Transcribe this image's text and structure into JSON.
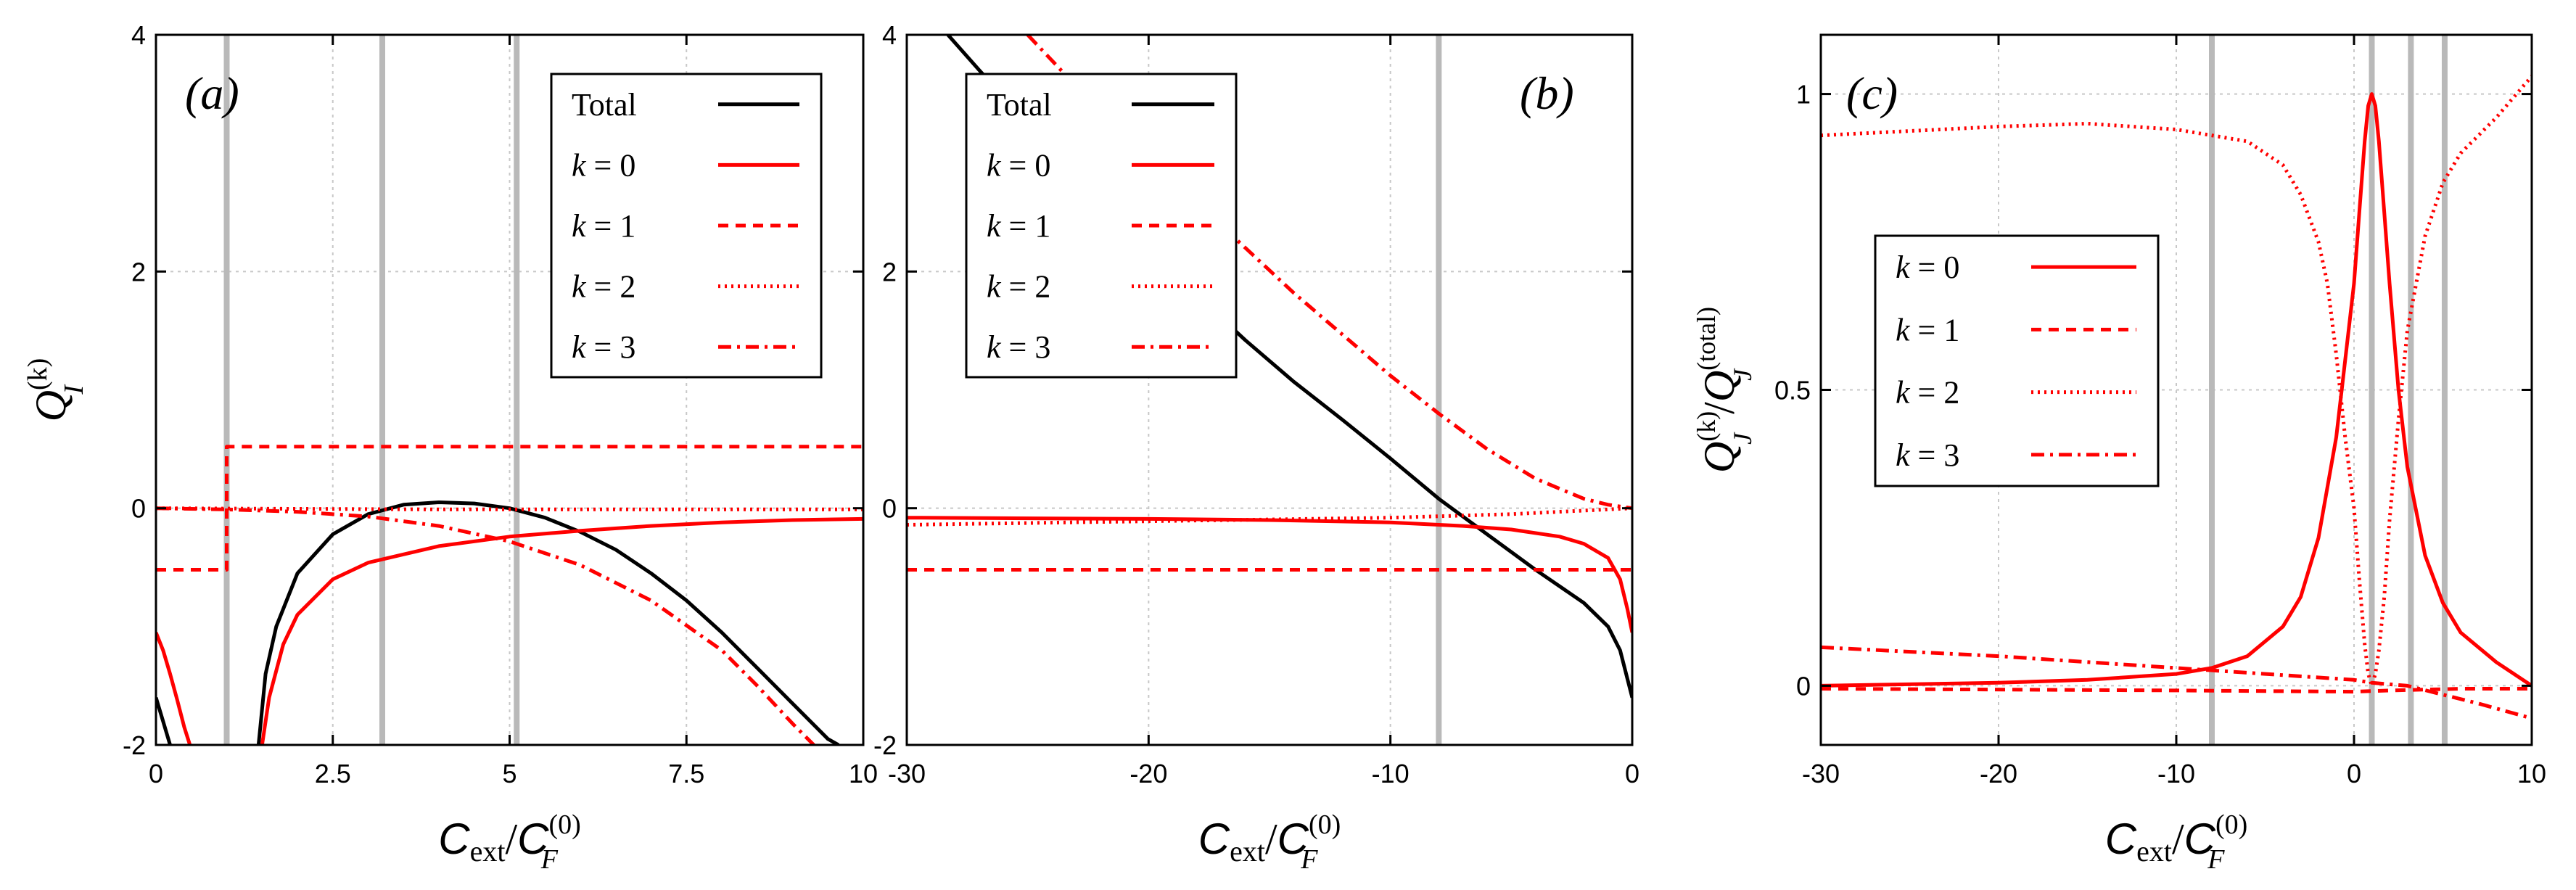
{
  "chart_data": [
    {
      "panel": "(a)",
      "type": "line",
      "xlabel": "C_ext / C_F^(0)",
      "ylabel": "Q_I^(k)",
      "xlim": [
        0,
        10
      ],
      "ylim": [
        -2,
        4
      ],
      "x_ticks": [
        "0",
        "2.5",
        "5",
        "7.5",
        "10"
      ],
      "x_tick_values": [
        0,
        2.5,
        5,
        7.5,
        10
      ],
      "y_ticks": [
        "-2",
        "0",
        "2",
        "4"
      ],
      "y_tick_values": [
        -2,
        0,
        2,
        4
      ],
      "vlines": [
        1.0,
        3.2,
        5.1
      ],
      "legend": [
        "Total",
        "k = 0",
        "k = 1",
        "k = 2",
        "k = 3"
      ],
      "series": [
        {
          "name": "Total",
          "color": "#000000",
          "dash": "",
          "x": [
            0,
            0.1,
            0.2
          ],
          "y": [
            -1.6,
            -1.8,
            -2.0
          ]
        },
        {
          "name": "Total",
          "color": "#000000",
          "dash": "",
          "x": [
            1.45,
            1.55,
            1.7,
            2.0,
            2.5,
            3.0,
            3.5,
            4.0,
            4.5,
            5.0,
            5.5,
            6.0,
            6.5,
            7.0,
            7.5,
            8.0,
            8.5,
            9.0,
            9.5,
            9.65
          ],
          "y": [
            -2.0,
            -1.4,
            -1.0,
            -0.55,
            -0.22,
            -0.05,
            0.03,
            0.05,
            0.04,
            0.0,
            -0.08,
            -0.2,
            -0.35,
            -0.55,
            -0.78,
            -1.05,
            -1.35,
            -1.65,
            -1.95,
            -2.0
          ]
        },
        {
          "name": "k = 0",
          "color": "#ff0000",
          "dash": "",
          "x": [
            0,
            0.1,
            0.2,
            0.3,
            0.4,
            0.48
          ],
          "y": [
            -1.05,
            -1.2,
            -1.4,
            -1.62,
            -1.85,
            -2.0
          ]
        },
        {
          "name": "k = 0",
          "color": "#ff0000",
          "dash": "",
          "x": [
            1.5,
            1.6,
            1.8,
            2.0,
            2.5,
            3.0,
            4.0,
            5.0,
            6.0,
            7.0,
            8.0,
            9.0,
            10.0
          ],
          "y": [
            -2.0,
            -1.6,
            -1.15,
            -0.9,
            -0.6,
            -0.46,
            -0.32,
            -0.24,
            -0.19,
            -0.15,
            -0.12,
            -0.1,
            -0.09
          ]
        },
        {
          "name": "k = 1",
          "color": "#ff0000",
          "dash": "14,10",
          "x": [
            0,
            1,
            1,
            10
          ],
          "y": [
            -0.52,
            -0.52,
            0.52,
            0.52
          ]
        },
        {
          "name": "k = 2",
          "color": "#ff0000",
          "dash": "3,6",
          "x": [
            0,
            2,
            4,
            6,
            8,
            10
          ],
          "y": [
            0.0,
            -0.005,
            -0.01,
            -0.01,
            -0.01,
            -0.01
          ]
        },
        {
          "name": "k = 3",
          "color": "#ff0000",
          "dash": "18,8,4,8",
          "x": [
            0,
            1,
            2,
            3,
            4,
            5,
            6,
            7,
            8,
            8.5,
            9,
            9.3
          ],
          "y": [
            0.0,
            -0.01,
            -0.03,
            -0.07,
            -0.15,
            -0.28,
            -0.48,
            -0.78,
            -1.2,
            -1.5,
            -1.82,
            -2.0
          ]
        }
      ]
    },
    {
      "panel": "(b)",
      "type": "line",
      "xlabel": "C_ext / C_F^(0)",
      "ylabel": "",
      "xlim": [
        -30,
        0
      ],
      "ylim": [
        -2,
        4
      ],
      "x_ticks": [
        "-30",
        "-20",
        "-10",
        "0"
      ],
      "x_tick_values": [
        -30,
        -20,
        -10,
        0
      ],
      "y_ticks": [
        "-2",
        "0",
        "2",
        "4"
      ],
      "y_tick_values": [
        -2,
        0,
        2,
        4
      ],
      "vlines": [
        -8.0
      ],
      "legend": [
        "Total",
        "k = 0",
        "k = 1",
        "k = 2",
        "k = 3"
      ],
      "series": [
        {
          "name": "Total",
          "color": "#000000",
          "dash": "",
          "x": [
            -28.3,
            -27,
            -25,
            -22,
            -20,
            -18,
            -16,
            -14,
            -12,
            -10,
            -8,
            -6,
            -4,
            -2,
            -1,
            -0.5,
            0
          ],
          "y": [
            4.0,
            3.7,
            3.25,
            2.6,
            2.2,
            1.8,
            1.42,
            1.07,
            0.75,
            0.42,
            0.08,
            -0.22,
            -0.52,
            -0.8,
            -1.0,
            -1.2,
            -1.6
          ]
        },
        {
          "name": "k = 0",
          "color": "#ff0000",
          "dash": "",
          "x": [
            -30,
            -20,
            -15,
            -10,
            -7,
            -5,
            -3,
            -2,
            -1,
            -0.5,
            -0.2,
            0
          ],
          "y": [
            -0.08,
            -0.09,
            -0.1,
            -0.12,
            -0.15,
            -0.18,
            -0.24,
            -0.3,
            -0.42,
            -0.6,
            -0.85,
            -1.05
          ]
        },
        {
          "name": "k = 1",
          "color": "#ff0000",
          "dash": "14,10",
          "x": [
            -30,
            0
          ],
          "y": [
            -0.52,
            -0.52
          ]
        },
        {
          "name": "k = 2",
          "color": "#ff0000",
          "dash": "3,6",
          "x": [
            -30,
            -20,
            -10,
            -5,
            -2,
            0
          ],
          "y": [
            -0.14,
            -0.11,
            -0.08,
            -0.05,
            -0.02,
            0.0
          ]
        },
        {
          "name": "k = 3",
          "color": "#ff0000",
          "dash": "18,8,4,8",
          "x": [
            -25,
            -22,
            -20,
            -18,
            -16,
            -14,
            -12,
            -10,
            -8,
            -6,
            -4,
            -2,
            -1,
            0
          ],
          "y": [
            4.0,
            3.35,
            2.95,
            2.58,
            2.2,
            1.82,
            1.47,
            1.12,
            0.8,
            0.5,
            0.25,
            0.08,
            0.03,
            0.0
          ]
        }
      ]
    },
    {
      "panel": "(c)",
      "type": "line",
      "xlabel": "C_ext / C_F^(0)",
      "ylabel": "Q_J^(k) / Q_J^(total)",
      "xlim": [
        -30,
        10
      ],
      "ylim": [
        -0.1,
        1.1
      ],
      "x_ticks": [
        "-30",
        "-20",
        "-10",
        "0",
        "10"
      ],
      "x_tick_values": [
        -30,
        -20,
        -10,
        0,
        10
      ],
      "y_ticks": [
        "0",
        "0.5",
        "1"
      ],
      "y_tick_values": [
        0,
        0.5,
        1
      ],
      "vlines": [
        -8.0,
        1.0,
        3.2,
        5.1
      ],
      "legend": [
        "k = 0",
        "k = 1",
        "k = 2",
        "k = 3"
      ],
      "series": [
        {
          "name": "k = 0",
          "color": "#ff0000",
          "dash": "",
          "x": [
            -30,
            -20,
            -15,
            -10,
            -8,
            -6,
            -4,
            -3,
            -2,
            -1,
            -0.5,
            0,
            0.3,
            0.6,
            0.8,
            1.0,
            1.2,
            1.4,
            1.7,
            2.0,
            2.5,
            3,
            4,
            5,
            6,
            8,
            10
          ],
          "y": [
            0.0,
            0.005,
            0.01,
            0.02,
            0.03,
            0.05,
            0.1,
            0.15,
            0.25,
            0.42,
            0.55,
            0.68,
            0.8,
            0.92,
            0.98,
            1.0,
            0.98,
            0.92,
            0.8,
            0.68,
            0.5,
            0.37,
            0.22,
            0.14,
            0.09,
            0.04,
            0.0
          ]
        },
        {
          "name": "k = 1",
          "color": "#ff0000",
          "dash": "14,10",
          "x": [
            -30,
            -10,
            0,
            2,
            6,
            10
          ],
          "y": [
            -0.005,
            -0.008,
            -0.01,
            -0.008,
            -0.005,
            -0.005
          ]
        },
        {
          "name": "k = 2",
          "color": "#ff0000",
          "dash": "3,6",
          "x": [
            -30,
            -20,
            -15,
            -10,
            -6,
            -4,
            -3,
            -2,
            -1.5,
            -1,
            -0.5,
            0,
            0.3,
            0.6,
            0.8,
            1.0,
            1.2,
            1.4,
            1.7,
            2.0,
            2.5,
            3,
            4,
            5,
            6,
            8,
            10
          ],
          "y": [
            0.93,
            0.945,
            0.95,
            0.94,
            0.92,
            0.88,
            0.83,
            0.75,
            0.68,
            0.56,
            0.42,
            0.3,
            0.18,
            0.07,
            0.02,
            0.0,
            0.02,
            0.06,
            0.15,
            0.28,
            0.45,
            0.6,
            0.76,
            0.85,
            0.9,
            0.96,
            1.03
          ]
        },
        {
          "name": "k = 3",
          "color": "#ff0000",
          "dash": "18,8,4,8",
          "x": [
            -30,
            -20,
            -10,
            -5,
            0,
            1,
            3,
            5,
            7,
            10
          ],
          "y": [
            0.065,
            0.05,
            0.03,
            0.02,
            0.01,
            0.005,
            0.0,
            -0.015,
            -0.03,
            -0.055
          ]
        }
      ]
    }
  ]
}
